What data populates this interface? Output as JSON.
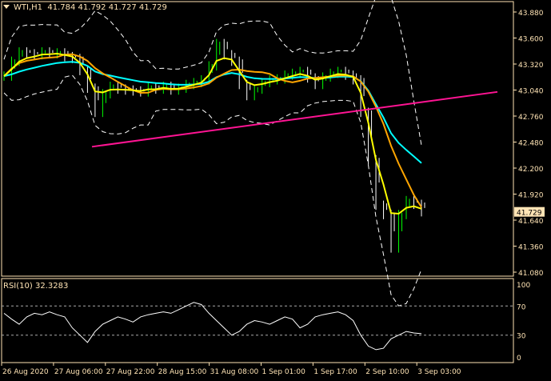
{
  "header": {
    "symbol": "WTI,H1",
    "ohlc": "41.784 41.792 41.727 41.729"
  },
  "rsi": {
    "label": "RSI(10) 32.3283",
    "levels": [
      70,
      30
    ],
    "scale": [
      "100",
      "70",
      "30",
      "0"
    ]
  },
  "colors": {
    "bg": "#000000",
    "axis": "#ffe4b5",
    "bull": "#00ff00",
    "bear": "#ffffff",
    "ma_fast": "#ffff00",
    "ma_mid": "#ffa500",
    "ma_slow": "#00ffff",
    "trendline": "#ff1493",
    "current_price_bg": "#ffe4b5"
  },
  "chart_data": {
    "type": "line",
    "price_axis": {
      "ticks": [
        "43.880",
        "43.600",
        "43.320",
        "43.040",
        "42.760",
        "42.480",
        "42.200",
        "41.920",
        "41.640",
        "41.360",
        "41.080"
      ],
      "range": [
        41.08,
        43.88
      ]
    },
    "current_price": "41.729",
    "time_axis": [
      "26 Aug 2020",
      "27 Aug 06:00",
      "27 Aug 22:00",
      "28 Aug 15:00",
      "31 Aug 08:00",
      "1 Sep 01:00",
      "1 Sep 17:00",
      "2 Sep 10:00",
      "3 Sep 03:00"
    ],
    "close": [
      43.19,
      43.35,
      43.45,
      43.43,
      43.42,
      43.45,
      43.43,
      43.44,
      43.4,
      43.38,
      43.25,
      43.06,
      42.8,
      43.0,
      43.08,
      43.05,
      43.04,
      43.03,
      43.02,
      43.07,
      43.05,
      43.08,
      43.04,
      43.06,
      43.1,
      43.12,
      43.15,
      43.3,
      43.54,
      43.42,
      43.35,
      43.1,
      42.98,
      43.05,
      43.12,
      43.15,
      43.16,
      43.2,
      43.22,
      43.24,
      43.17,
      43.1,
      43.18,
      43.22,
      43.24,
      43.2,
      43.15,
      42.8,
      42.29,
      41.8,
      41.7,
      41.34,
      41.7,
      41.85,
      41.81,
      41.73
    ],
    "trendline": {
      "from": 42.43,
      "to": 43.02
    },
    "rsi_values": [
      60,
      52,
      45,
      55,
      60,
      58,
      62,
      58,
      55,
      40,
      30,
      20,
      35,
      45,
      50,
      55,
      52,
      48,
      55,
      58,
      60,
      62,
      60,
      65,
      70,
      75,
      72,
      60,
      50,
      40,
      30,
      35,
      45,
      50,
      48,
      45,
      50,
      55,
      52,
      40,
      45,
      55,
      58,
      60,
      62,
      58,
      50,
      30,
      15,
      10,
      12,
      25,
      30,
      35,
      33,
      32
    ]
  }
}
